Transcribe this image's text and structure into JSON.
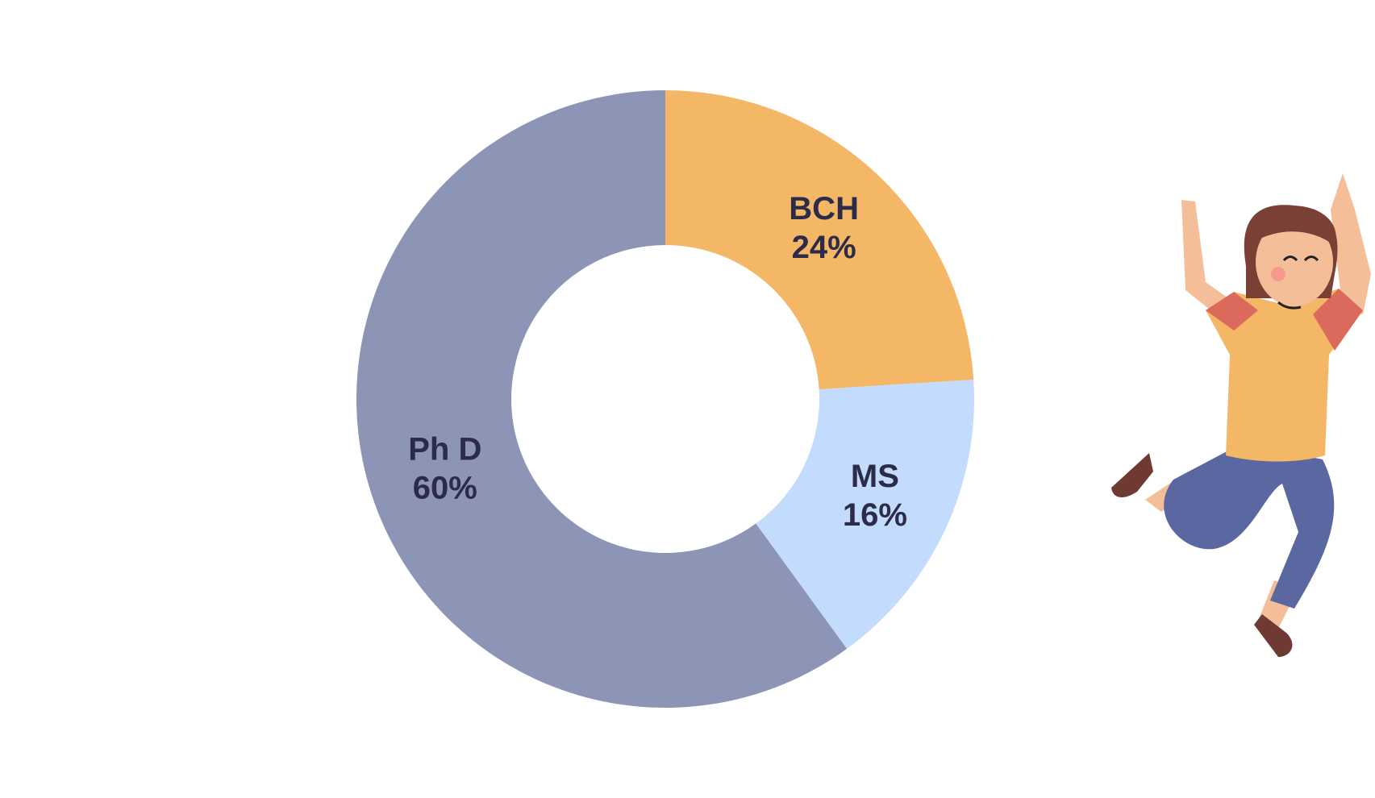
{
  "chart_data": {
    "type": "pie",
    "categories": [
      "BCH",
      "MS",
      "Ph D"
    ],
    "values": [
      24,
      16,
      60
    ],
    "value_labels": [
      "24%",
      "16%",
      "60%"
    ],
    "colors": [
      "#f4b766",
      "#c3dbfc",
      "#8d95b7"
    ]
  }
}
